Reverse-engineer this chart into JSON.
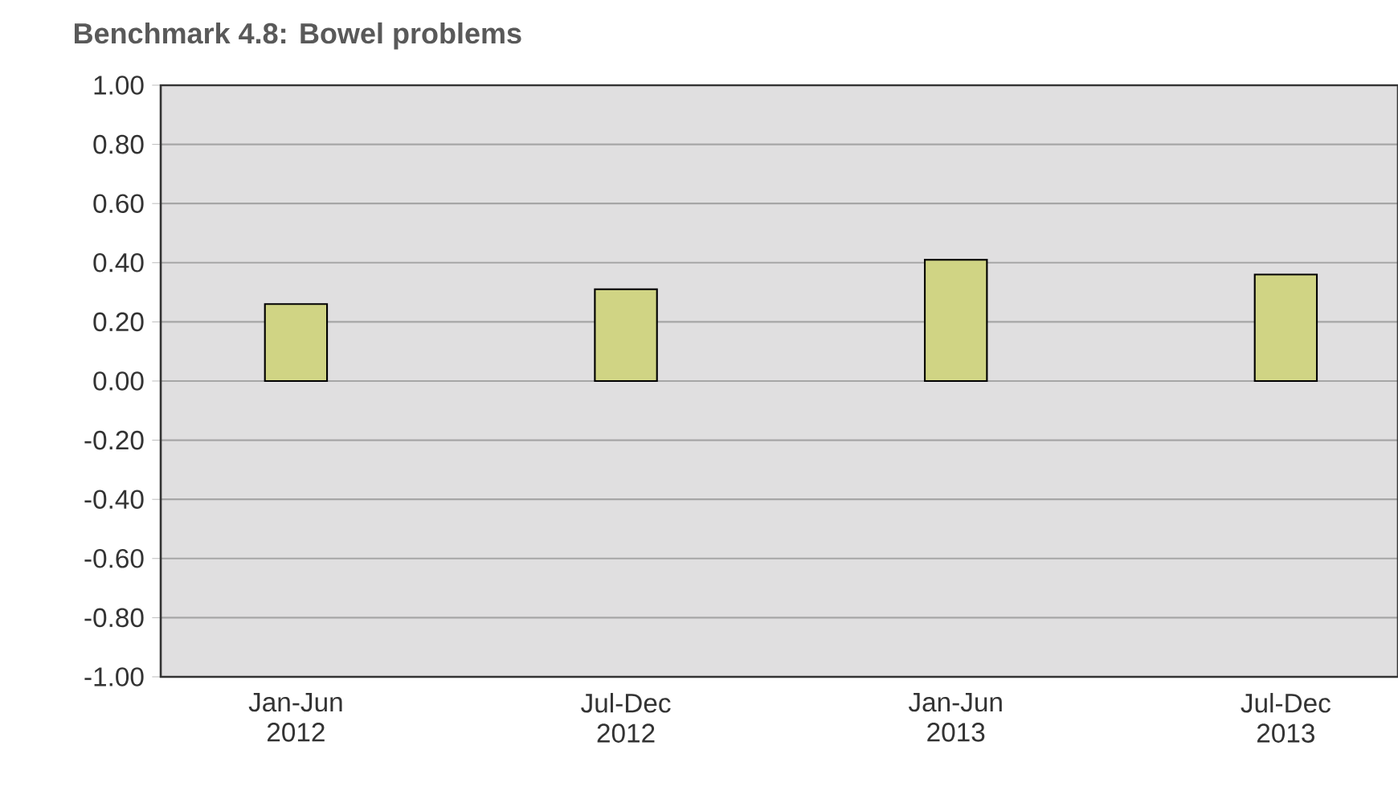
{
  "chart_data": {
    "type": "bar",
    "title": "Benchmark 4.8:  Bowel problems",
    "categories": [
      "Jan-Jun 2012",
      "Jul-Dec 2012",
      "Jan-Jun 2013",
      "Jul-Dec 2013"
    ],
    "values": [
      0.26,
      0.31,
      0.41,
      0.36
    ],
    "color": "#d0d484",
    "ylim": [
      -1,
      1
    ],
    "yticks": [
      {
        "value": -1,
        "label": "-1.00"
      },
      {
        "value": -0.8,
        "label": "-0.80"
      },
      {
        "value": -0.6,
        "label": "-0.60"
      },
      {
        "value": -0.4,
        "label": "-0.40"
      },
      {
        "value": -0.2,
        "label": "-0.20"
      },
      {
        "value": 0,
        "label": "0.00"
      },
      {
        "value": 0.2,
        "label": "0.20"
      },
      {
        "value": 0.4,
        "label": "0.40"
      },
      {
        "value": 0.6,
        "label": "0.60"
      },
      {
        "value": 0.8,
        "label": "0.80"
      },
      {
        "value": 1,
        "label": "1.00"
      }
    ],
    "grid": "y"
  }
}
